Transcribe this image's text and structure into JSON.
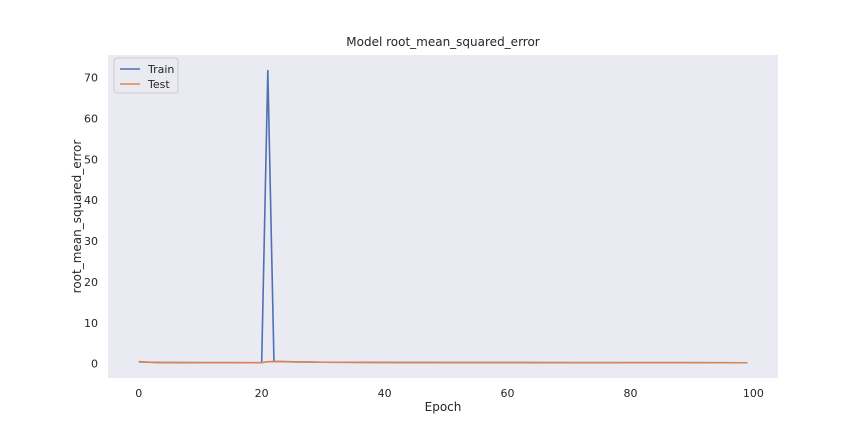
{
  "chart_data": {
    "type": "line",
    "title": "Model root_mean_squared_error",
    "xlabel": "Epoch",
    "ylabel": "root_mean_squared_error",
    "xlim": [
      -5,
      104
    ],
    "ylim": [
      -3.5,
      75.5
    ],
    "xticks": [
      0,
      20,
      40,
      60,
      80,
      100
    ],
    "yticks": [
      0,
      10,
      20,
      30,
      40,
      50,
      60,
      70
    ],
    "grid": false,
    "legend_position": "upper-left",
    "series": [
      {
        "name": "Train",
        "color": "#4c72b0",
        "points": [
          [
            0,
            0.5
          ],
          [
            1,
            0.4
          ],
          [
            2,
            0.35
          ],
          [
            3,
            0.3
          ],
          [
            4,
            0.28
          ],
          [
            5,
            0.27
          ],
          [
            10,
            0.25
          ],
          [
            15,
            0.24
          ],
          [
            20,
            0.23
          ],
          [
            21,
            71.7
          ],
          [
            22,
            0.55
          ],
          [
            25,
            0.45
          ],
          [
            30,
            0.35
          ],
          [
            40,
            0.3
          ],
          [
            50,
            0.28
          ],
          [
            60,
            0.27
          ],
          [
            70,
            0.26
          ],
          [
            80,
            0.25
          ],
          [
            90,
            0.24
          ],
          [
            99,
            0.23
          ]
        ]
      },
      {
        "name": "Test",
        "color": "#dd8452",
        "points": [
          [
            0,
            0.45
          ],
          [
            1,
            0.38
          ],
          [
            2,
            0.33
          ],
          [
            3,
            0.3
          ],
          [
            4,
            0.28
          ],
          [
            5,
            0.27
          ],
          [
            10,
            0.25
          ],
          [
            15,
            0.24
          ],
          [
            20,
            0.24
          ],
          [
            21,
            0.5
          ],
          [
            22,
            0.52
          ],
          [
            25,
            0.45
          ],
          [
            30,
            0.35
          ],
          [
            40,
            0.3
          ],
          [
            50,
            0.28
          ],
          [
            60,
            0.27
          ],
          [
            70,
            0.26
          ],
          [
            80,
            0.25
          ],
          [
            90,
            0.24
          ],
          [
            99,
            0.23
          ]
        ]
      }
    ]
  },
  "colors": {
    "plot_background": "#eaeaf2",
    "figure_background": "#ffffff",
    "legend_background": "#eaeaf2",
    "legend_border": "#cccccc"
  }
}
